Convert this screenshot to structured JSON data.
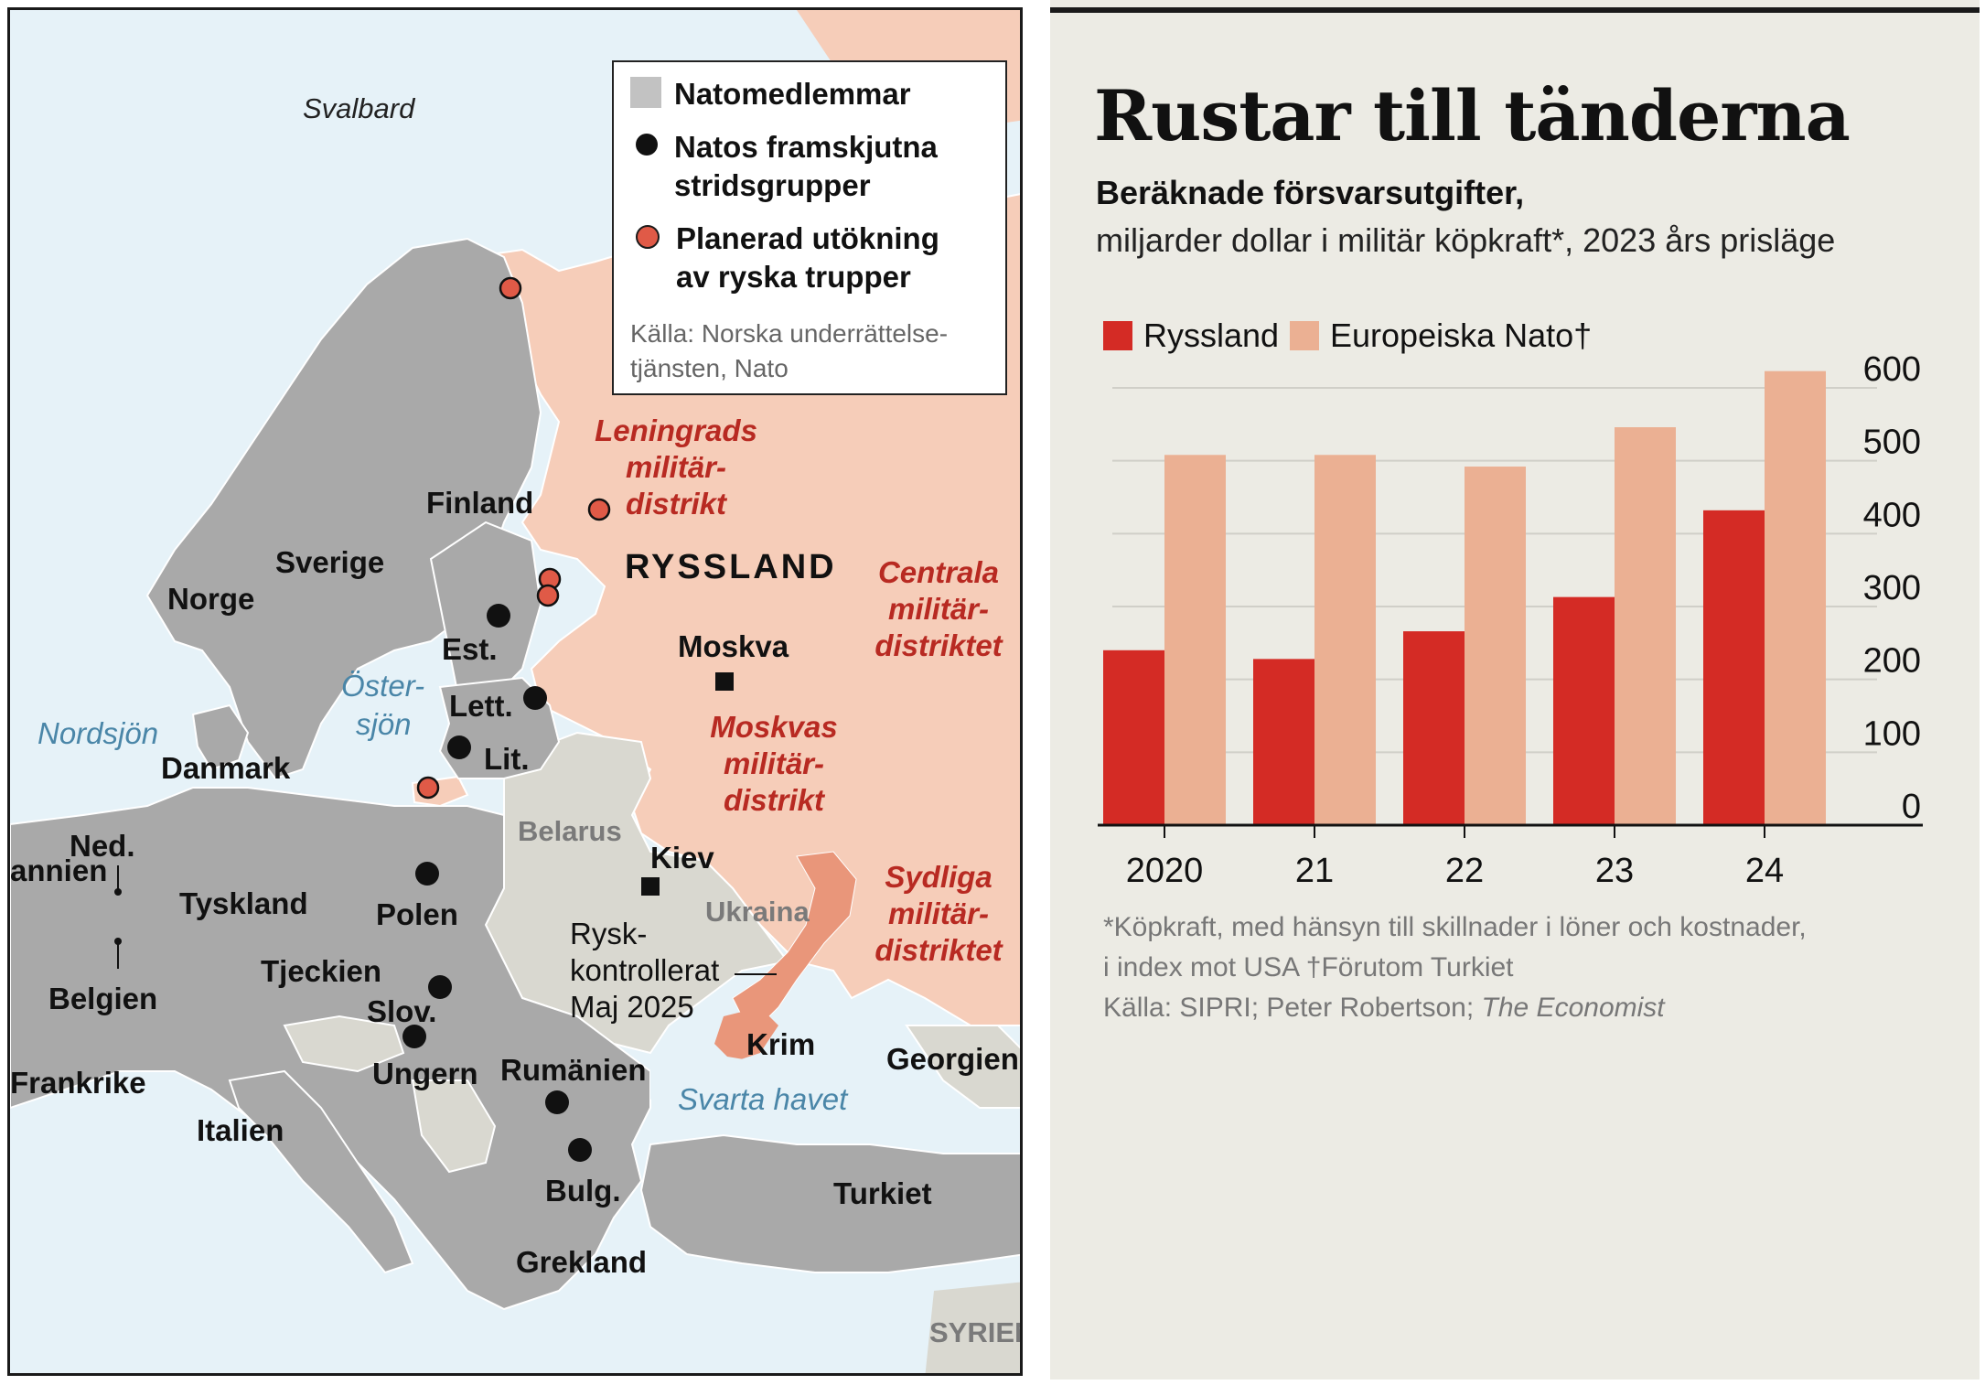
{
  "map": {
    "legend": {
      "nato_members": "Natomedlemmar",
      "battlegroups": "Natos framskjutna stridsgrupper",
      "russian_expansion": "Planerad utökning av ryska trupper",
      "source": "Källa: Norska underrättelse-tjänsten, Nato"
    },
    "country_labels": {
      "svalbard": "Svalbard",
      "finland": "Finland",
      "sverige": "Sverige",
      "norge": "Norge",
      "ryssland": "RYSSLAND",
      "moskva": "Moskva",
      "est": "Est.",
      "lett": "Lett.",
      "lit": "Lit.",
      "danmark": "Danmark",
      "ned": "Ned.",
      "annien": "annien",
      "tyskland": "Tyskland",
      "polen": "Polen",
      "belgien": "Belgien",
      "tjeckien": "Tjeckien",
      "slov": "Slov.",
      "ungern": "Ungern",
      "frankrike": "Frankrike",
      "italien": "Italien",
      "rumanien": "Rumänien",
      "bulg": "Bulg.",
      "grekland": "Grekland",
      "turkiet": "Turkiet",
      "georgien": "Georgien",
      "krim": "Krim",
      "kiev": "Kiev",
      "belarus": "Belarus",
      "ukraina": "Ukraina",
      "syrien": "SYRIEN"
    },
    "sea_labels": {
      "nordsjon": "Nordsjön",
      "ostersjon_1": "Öster-",
      "ostersjon_2": "sjön",
      "svarta_havet": "Svarta havet"
    },
    "military_districts": {
      "leningrad": [
        "Leningrads",
        "militär-",
        "distrikt"
      ],
      "centrala": [
        "Centrala",
        "militär-",
        "distriktet"
      ],
      "moskva": [
        "Moskvas",
        "militär-",
        "distrikt"
      ],
      "sydliga": [
        "Sydliga",
        "militär-",
        "distriktet"
      ]
    },
    "russian_controlled": [
      "Rysk-",
      "kontrollerat",
      "Maj 2025"
    ],
    "colors": {
      "sea": "#e6f2f8",
      "nato": "#a9a9a9",
      "non_nato": "#d9d8d0",
      "russia": "#f6cdb9",
      "occupied": "#e9967a",
      "expansion_dot": "#e05a47"
    }
  },
  "chart": {
    "title": "Rustar till tänderna",
    "subtitle_bold": "Beräknade försvarsutgifter,",
    "subtitle": "miljarder dollar i militär köpkraft*, 2023 års prisläge",
    "legend": [
      "Ryssland",
      "Europeiska Nato†"
    ],
    "footnote_1": "*Köpkraft, med hänsyn till skillnader i löner och kostnader,",
    "footnote_2": "i index mot USA    †Förutom Turkiet",
    "source_prefix": "Källa: SIPRI; Peter Robertson; ",
    "source_italic": "The Economist"
  },
  "chart_data": {
    "type": "bar",
    "categories": [
      "2020",
      "21",
      "22",
      "23",
      "24"
    ],
    "series": [
      {
        "name": "Ryssland",
        "color": "#d42b25",
        "values": [
          240,
          228,
          266,
          313,
          432
        ]
      },
      {
        "name": "Europeiska Nato†",
        "color": "#ebb093",
        "values": [
          508,
          508,
          492,
          546,
          623
        ]
      }
    ],
    "ylim": [
      0,
      600
    ],
    "yticks": [
      "0",
      "100",
      "200",
      "300",
      "400",
      "500",
      "600"
    ],
    "grid": true,
    "y_axis_side": "right",
    "legend_position": "top-left"
  }
}
